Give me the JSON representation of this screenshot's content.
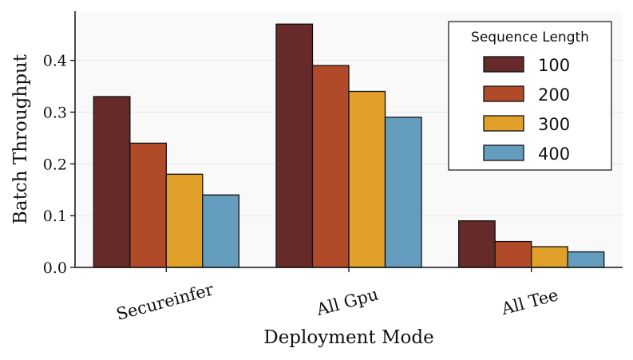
{
  "chart_data": {
    "type": "bar",
    "title": "",
    "xlabel": "Deployment Mode",
    "ylabel": "Batch Throughput",
    "categories": [
      "Secureinfer",
      "All Gpu",
      "All Tee"
    ],
    "series": [
      {
        "name": "100",
        "color": "#662a2b",
        "values": [
          0.33,
          0.47,
          0.09
        ]
      },
      {
        "name": "200",
        "color": "#b04a28",
        "values": [
          0.24,
          0.39,
          0.05
        ]
      },
      {
        "name": "300",
        "color": "#e0a029",
        "values": [
          0.18,
          0.34,
          0.04
        ]
      },
      {
        "name": "400",
        "color": "#649dbd",
        "values": [
          0.14,
          0.29,
          0.03
        ]
      }
    ],
    "ylim": [
      0,
      0.495
    ],
    "yticks": [
      0.0,
      0.1,
      0.2,
      0.3,
      0.4
    ],
    "ytick_labels": [
      "0.0",
      "0.1",
      "0.2",
      "0.3",
      "0.4"
    ],
    "grid": "y",
    "legend": {
      "title": "Sequence Length",
      "placement": "top-right"
    },
    "background_color": "#f9f9f9",
    "edge_color": "#111111"
  }
}
